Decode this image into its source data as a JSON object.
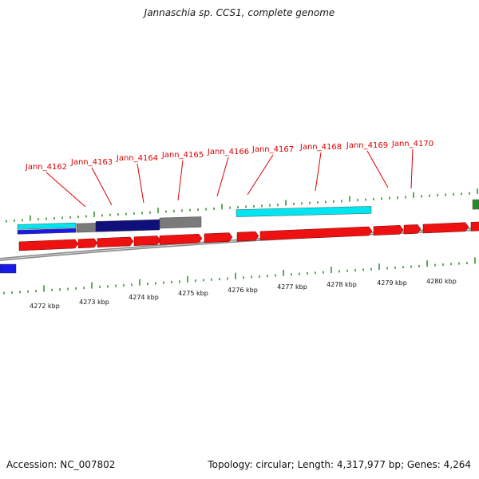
{
  "title": "Jannaschia sp. CCS1, complete genome",
  "footer": {
    "accession": "Accession: NC_007802",
    "summary": "Topology: circular; Length: 4,317,977 bp; Genes: 4,264"
  },
  "colors": {
    "cds_red": "#ee1111",
    "cyan": "#00e5f0",
    "navy": "#10107a",
    "blue": "#1a1ae6",
    "gray": "#7a7a7a",
    "green": "#2a8a2a",
    "tick_green": "#2a8a2a",
    "label_red": "#dd0000",
    "backbone": "#8a8a8a"
  },
  "gene_labels": [
    {
      "name": "Jann_4162"
    },
    {
      "name": "Jann_4163"
    },
    {
      "name": "Jann_4164"
    },
    {
      "name": "Jann_4165"
    },
    {
      "name": "Jann_4166"
    },
    {
      "name": "Jann_4167"
    },
    {
      "name": "Jann_4168"
    },
    {
      "name": "Jann_4169"
    },
    {
      "name": "Jann_4170"
    }
  ],
  "kbp_labels": [
    "4272 kbp",
    "4273 kbp",
    "4274 kbp",
    "4275 kbp",
    "4276 kbp",
    "4277 kbp",
    "4278 kbp",
    "4279 kbp",
    "4280 kbp"
  ]
}
